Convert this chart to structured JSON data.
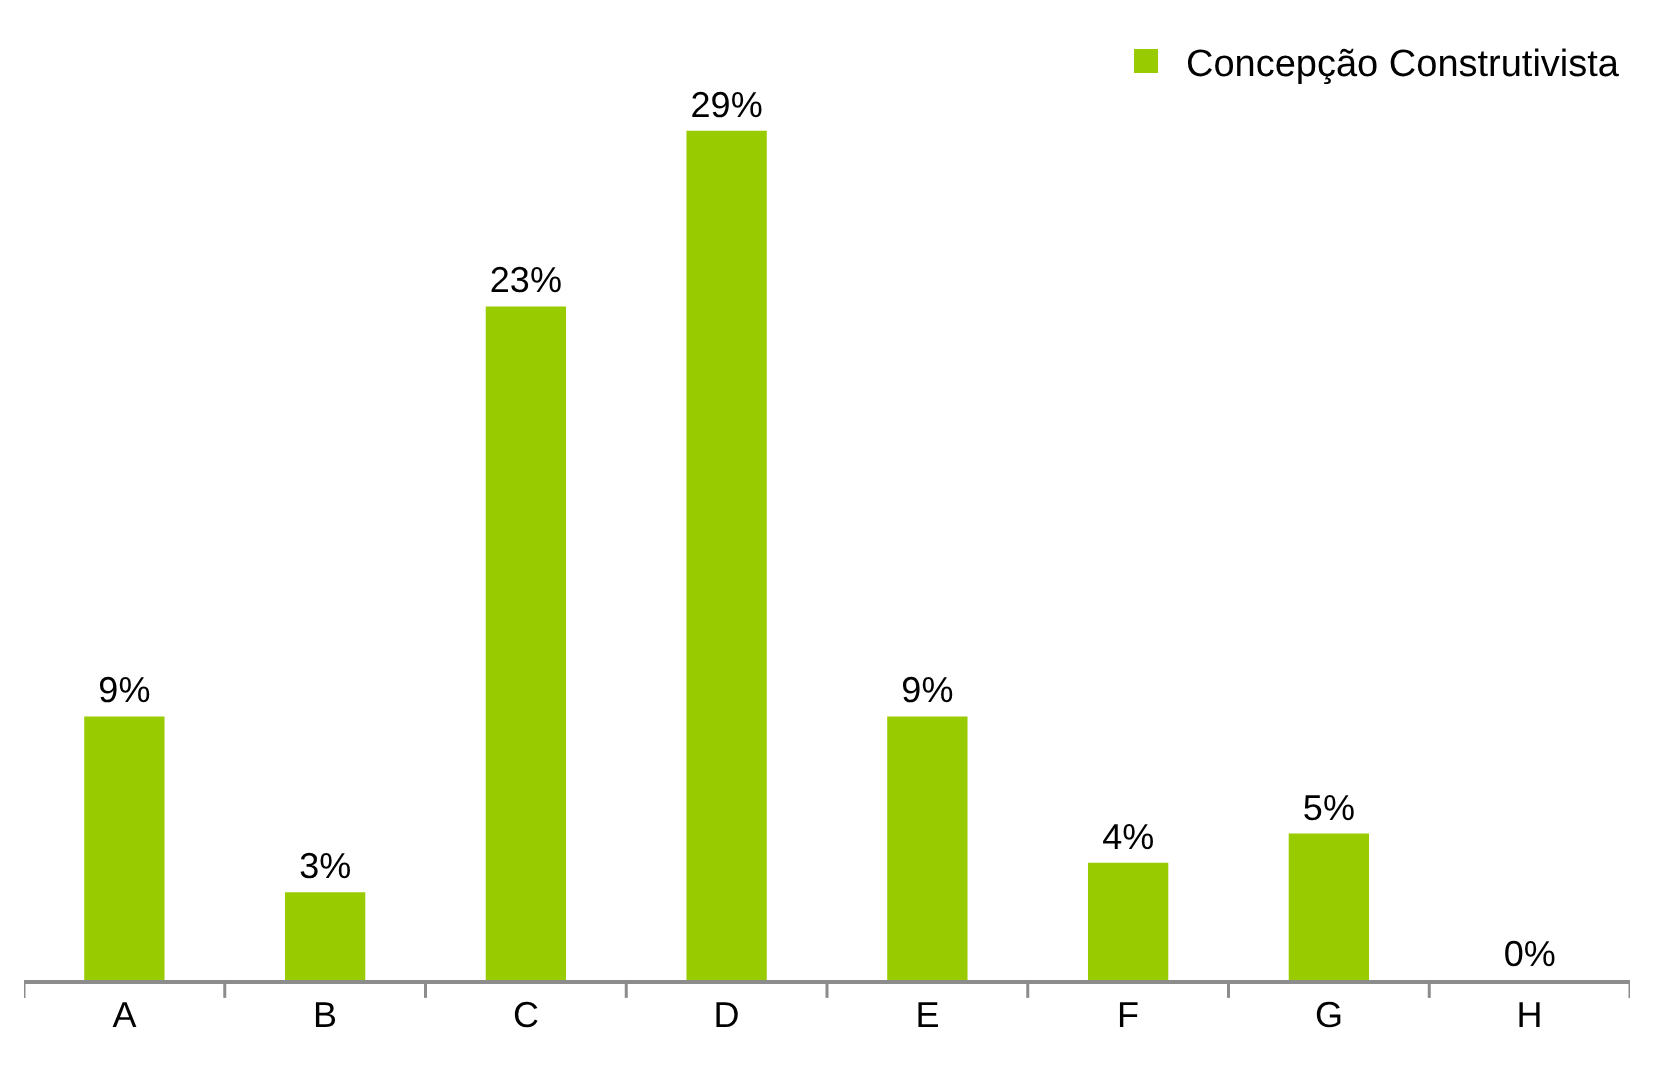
{
  "chart_data": {
    "type": "bar",
    "categories": [
      "A",
      "B",
      "C",
      "D",
      "E",
      "F",
      "G",
      "H"
    ],
    "series": [
      {
        "name": "Concepção Construtivista",
        "color": "#99cc00",
        "values": [
          9,
          3,
          23,
          29,
          9,
          4,
          5,
          0
        ],
        "value_labels": [
          "9%",
          "3%",
          "23%",
          "29%",
          "9%",
          "4%",
          "5%",
          "0%"
        ]
      }
    ],
    "legend": "top right"
  }
}
